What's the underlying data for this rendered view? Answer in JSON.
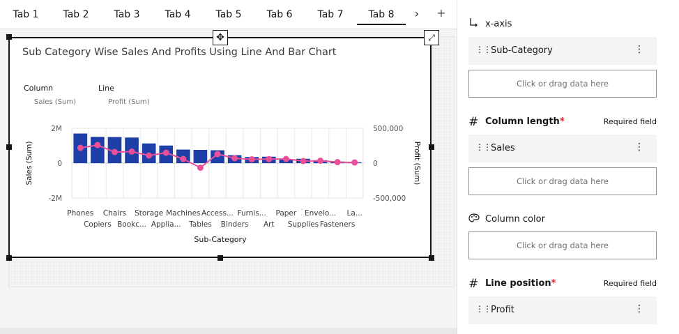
{
  "tabs": [
    {
      "label": "Tab 1"
    },
    {
      "label": "Tab 2"
    },
    {
      "label": "Tab 3"
    },
    {
      "label": "Tab 4"
    },
    {
      "label": "Tab 5"
    },
    {
      "label": "Tab 6"
    },
    {
      "label": "Tab 7"
    },
    {
      "label": "Tab 8"
    }
  ],
  "active_tab": "Tab 8",
  "tab_scroll_icon": "›",
  "tab_add_icon": "+",
  "widget": {
    "title": "Sub Category Wise Sales And Profits Using Line And Bar Chart",
    "legend_column_label": "Column",
    "legend_column_value": "Sales (Sum)",
    "legend_line_label": "Line",
    "legend_line_value": "Profit (Sum)"
  },
  "chart_data": {
    "type": "bar",
    "title": "Sub Category Wise Sales And Profits Using Line And Bar Chart",
    "xlabel": "Sub-Category",
    "ylabel": "Sales (Sum)",
    "y2label": "Profit (Sum)",
    "ylim": [
      -2000000,
      2000000
    ],
    "y2lim": [
      -500000,
      500000
    ],
    "yticks": [
      "2M",
      "0",
      "-2M"
    ],
    "y2ticks": [
      "500,000",
      "0",
      "-500,000"
    ],
    "categories": [
      "Phones",
      "Copiers",
      "Chairs",
      "Bookc...",
      "Storage",
      "Applia...",
      "Machines",
      "Tables",
      "Access...",
      "Binders",
      "Furnis...",
      "Art",
      "Paper",
      "Supplies",
      "Envelo...",
      "Fasteners",
      "La..."
    ],
    "series": [
      {
        "name": "Sales (Sum)",
        "type": "bar",
        "color": "#1f3fa8",
        "values": [
          1700000,
          1510000,
          1500000,
          1470000,
          1130000,
          1010000,
          780000,
          760000,
          740000,
          460000,
          350000,
          370000,
          240000,
          250000,
          170000,
          90000,
          50000
        ]
      },
      {
        "name": "Profit (Sum)",
        "type": "line",
        "color": "#e8509a",
        "values": [
          220000,
          260000,
          160000,
          165000,
          110000,
          150000,
          60000,
          -65000,
          130000,
          70000,
          55000,
          58000,
          60000,
          30000,
          35000,
          15000,
          10000
        ]
      }
    ],
    "grid": true
  },
  "panel": {
    "xaxis": {
      "title": "x-axis",
      "icon": "axis-icon",
      "field": "Sub-Category",
      "drop_hint": "Click or drag data here"
    },
    "column_length": {
      "title": "Column length",
      "required": "Required field",
      "field": "Sales",
      "drop_hint": "Click or drag data here"
    },
    "column_color": {
      "title": "Column color",
      "drop_hint": "Click or drag data here"
    },
    "line_position": {
      "title": "Line position",
      "required": "Required field",
      "field": "Profit"
    }
  }
}
